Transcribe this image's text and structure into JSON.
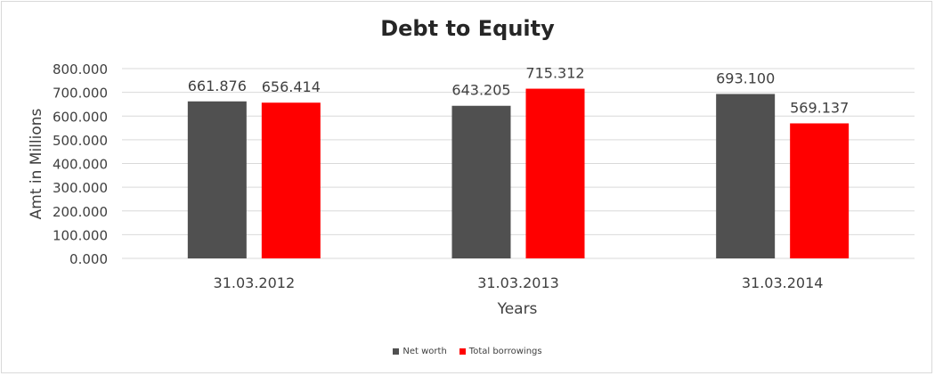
{
  "chart_data": {
    "type": "bar",
    "title": "Debt to Equity",
    "xlabel": "Years",
    "ylabel": "Amt in Millions",
    "categories": [
      "31.03.2012",
      "31.03.2013",
      "31.03.2014"
    ],
    "ylim": [
      0,
      800
    ],
    "yticks": [
      "0.000",
      "100.000",
      "200.000",
      "300.000",
      "400.000",
      "500.000",
      "600.000",
      "700.000",
      "800.000"
    ],
    "grid": true,
    "legend_position": "bottom",
    "series": [
      {
        "name": "Net worth",
        "color": "#505050",
        "values": [
          661.876,
          643.205,
          693.1
        ],
        "labels": [
          "661.876",
          "643.205",
          "693.100"
        ]
      },
      {
        "name": "Total borrowings",
        "color": "#ff0000",
        "values": [
          656.414,
          715.312,
          569.137
        ],
        "labels": [
          "656.414",
          "715.312",
          "569.137"
        ]
      }
    ]
  }
}
